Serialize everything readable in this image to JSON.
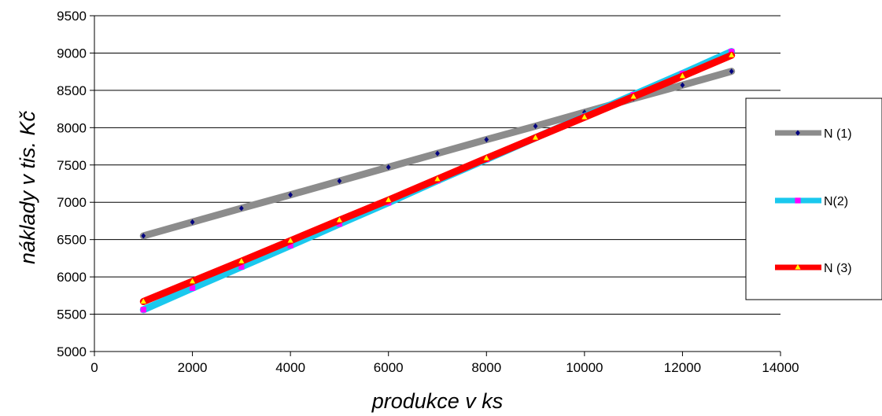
{
  "chart_data": {
    "type": "scatter",
    "title": "",
    "xlabel": "produkce v ks",
    "ylabel": "náklady v tis. Kč",
    "xlim": [
      0,
      14000
    ],
    "ylim": [
      5000,
      9500
    ],
    "xticks": [
      0,
      2000,
      4000,
      6000,
      8000,
      10000,
      12000,
      14000
    ],
    "yticks": [
      5000,
      5500,
      6000,
      6500,
      7000,
      7500,
      8000,
      8500,
      9000,
      9500
    ],
    "grid": "horizontal",
    "legend_position": "right",
    "series": [
      {
        "name": "N (1)",
        "line_color": "#8c8c8c",
        "marker_color": "#000080",
        "marker": "diamond",
        "x": [
          1000,
          2000,
          3000,
          4000,
          5000,
          6000,
          7000,
          8000,
          9000,
          10000,
          11000,
          12000,
          13000
        ],
        "y": [
          6550,
          6735,
          6920,
          7100,
          7285,
          7470,
          7655,
          7840,
          8020,
          8205,
          8390,
          8570,
          8755
        ]
      },
      {
        "name": "N(2)",
        "line_color": "#1ac8ee",
        "marker_color": "#ff00ff",
        "marker": "square",
        "x": [
          1000,
          2000,
          3000,
          4000,
          5000,
          6000,
          7000,
          8000,
          9000,
          10000,
          11000,
          12000,
          13000
        ],
        "y": [
          5560,
          5850,
          6135,
          6420,
          6710,
          6995,
          7290,
          7575,
          7865,
          8150,
          8440,
          8725,
          9020
        ]
      },
      {
        "name": "N (3)",
        "line_color": "#ff0000",
        "marker_color": "#ffff00",
        "marker": "triangle",
        "x": [
          1000,
          2000,
          3000,
          4000,
          5000,
          6000,
          7000,
          8000,
          9000,
          10000,
          11000,
          12000,
          13000
        ],
        "y": [
          5670,
          5940,
          6210,
          6485,
          6760,
          7030,
          7310,
          7590,
          7865,
          8140,
          8415,
          8690,
          8970
        ]
      }
    ]
  }
}
